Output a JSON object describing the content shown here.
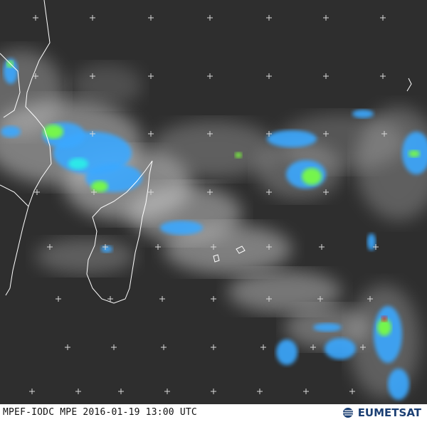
{
  "image": {
    "caption": "MPEF-IODC MPE 2016-01-19 13:00 UTC",
    "logo_text": "EUMETSAT",
    "colors": {
      "background": "#2e2e2e",
      "cloud": "#cfcfcf",
      "precip_light": "#3aa8ff",
      "precip_medium": "#2cf0e6",
      "precip_heavy": "#7cff3a",
      "precip_extreme": "#e02020",
      "coastline": "#ffffff",
      "logo": "#1b3f73"
    }
  }
}
